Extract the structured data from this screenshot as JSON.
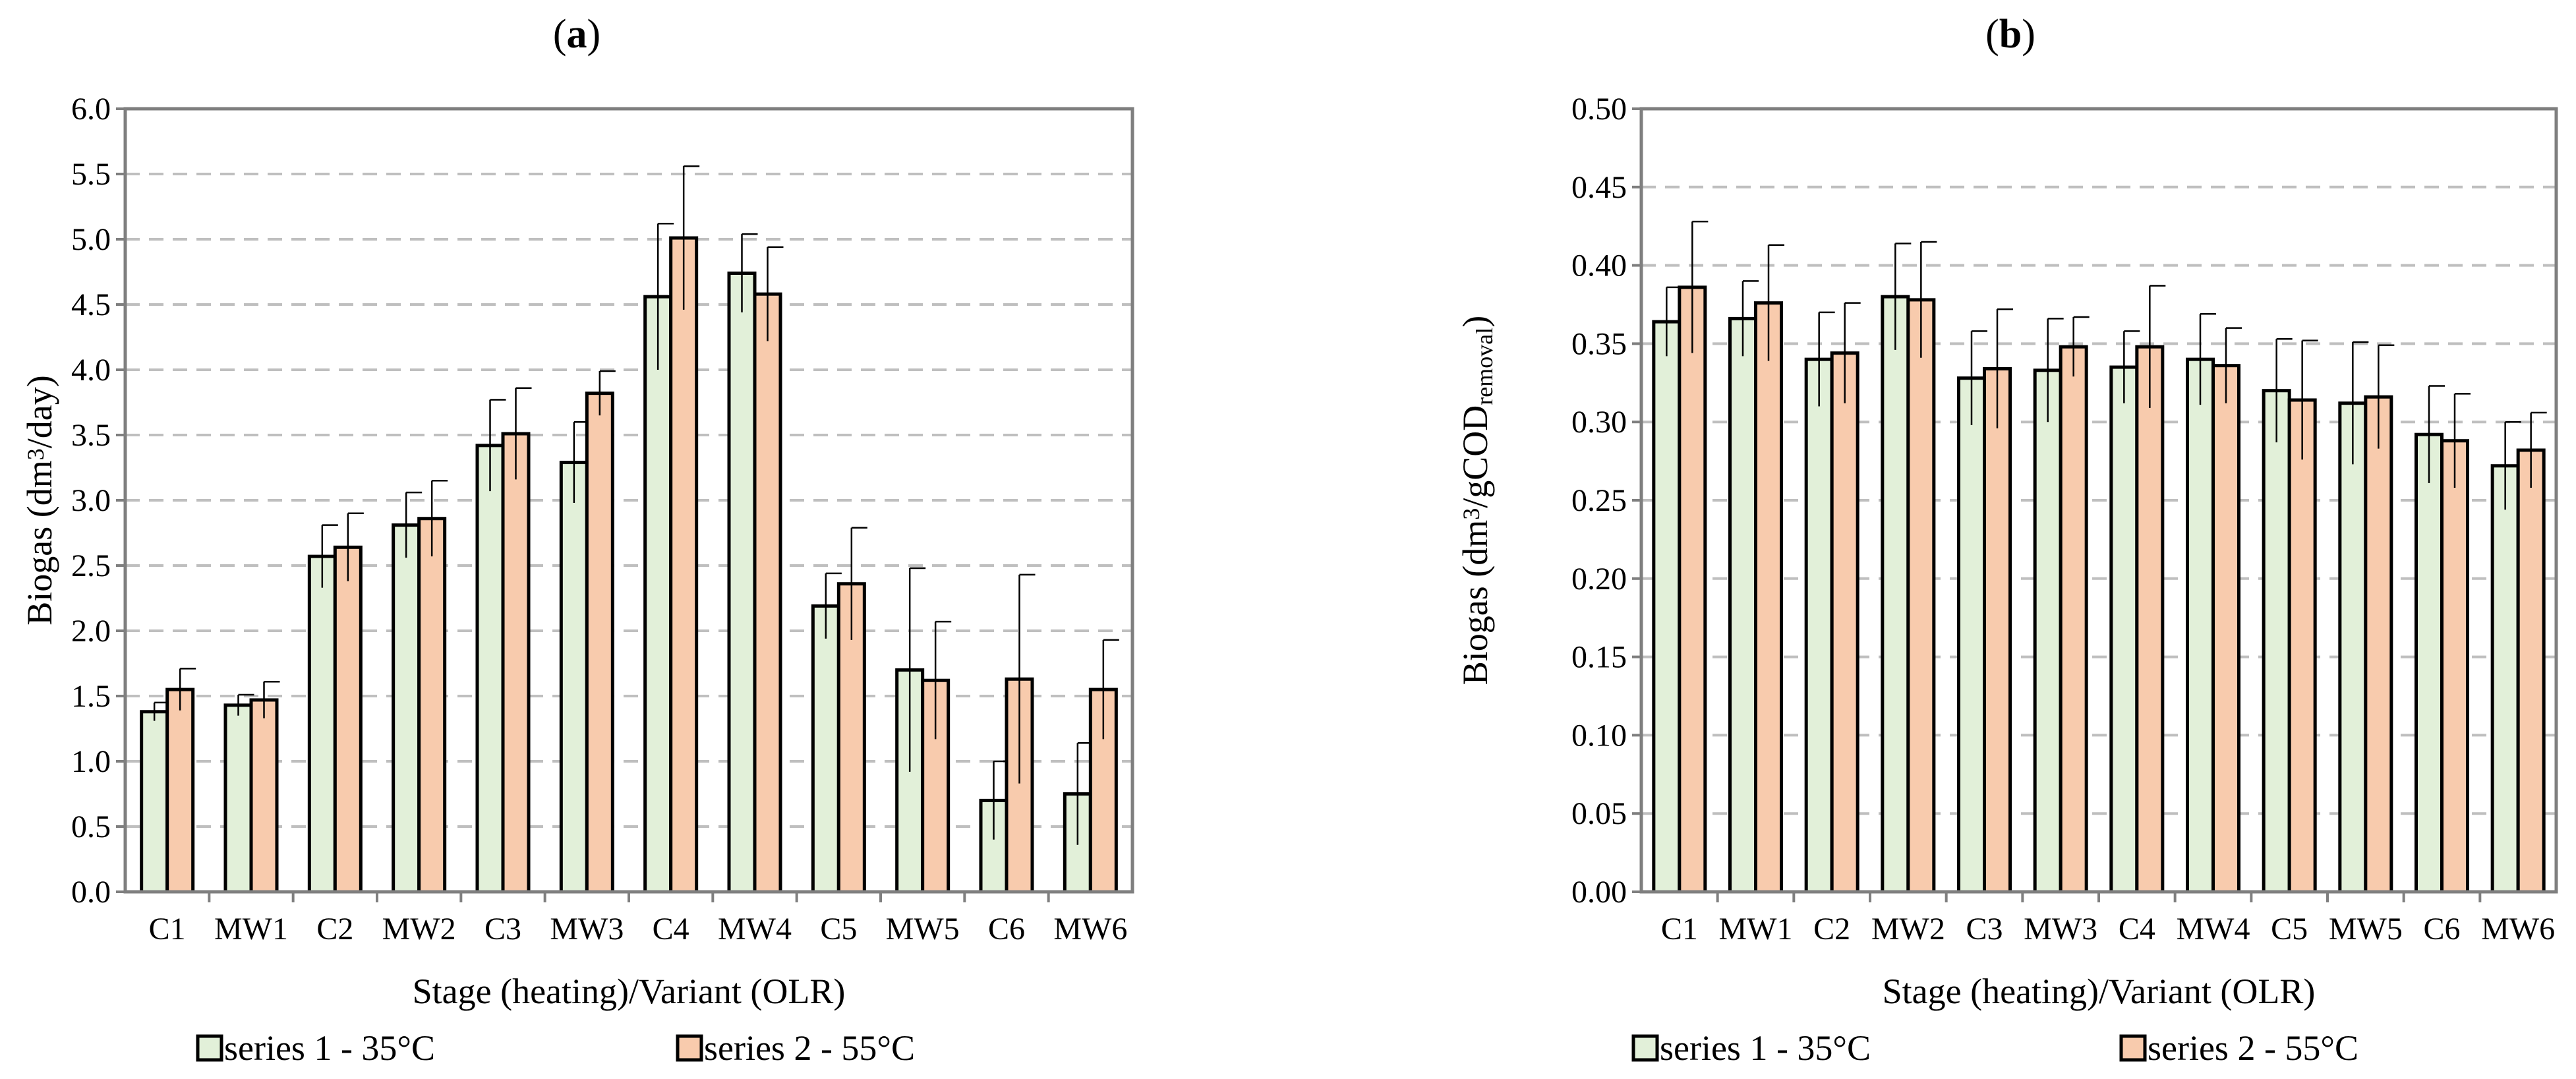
{
  "chart_data": [
    {
      "id": "a",
      "type": "bar",
      "title_prefix": "(",
      "title": "a",
      "title_suffix": ")",
      "xlabel": "Stage (heating)/Variant (OLR)",
      "ylabel": {
        "pre": "Biogas (dm",
        "sup": "3",
        "post": "/day)",
        "sub": "",
        "tail": ""
      },
      "ylim": [
        0,
        6.0
      ],
      "ytick_step": 0.5,
      "ytick_decimals": 1,
      "grid": true,
      "categories": [
        "C1",
        "MW1",
        "C2",
        "MW2",
        "C3",
        "MW3",
        "C4",
        "MW4",
        "C5",
        "MW5",
        "C6",
        "MW6"
      ],
      "series": [
        {
          "name": "series 1 - 35°C",
          "values": [
            1.38,
            1.43,
            2.57,
            2.81,
            3.42,
            3.29,
            4.56,
            4.74,
            2.19,
            1.7,
            0.7,
            0.75
          ],
          "errors": [
            0.07,
            0.08,
            0.24,
            0.25,
            0.35,
            0.31,
            0.56,
            0.3,
            0.25,
            0.78,
            0.3,
            0.39
          ]
        },
        {
          "name": "series 2 - 55°C",
          "values": [
            1.55,
            1.47,
            2.64,
            2.86,
            3.51,
            3.82,
            5.01,
            4.58,
            2.36,
            1.62,
            1.63,
            1.55
          ],
          "errors": [
            0.16,
            0.14,
            0.26,
            0.29,
            0.35,
            0.17,
            0.55,
            0.36,
            0.43,
            0.45,
            0.8,
            0.38
          ]
        }
      ]
    },
    {
      "id": "b",
      "type": "bar",
      "title_prefix": "(",
      "title": "b",
      "title_suffix": ")",
      "xlabel": "Stage (heating)/Variant (OLR)",
      "ylabel": {
        "pre": "Biogas (dm",
        "sup": "3",
        "post": "/gCOD",
        "sub": "removal",
        "tail": ")"
      },
      "ylim": [
        0,
        0.5
      ],
      "ytick_step": 0.05,
      "ytick_decimals": 2,
      "grid": true,
      "categories": [
        "C1",
        "MW1",
        "C2",
        "MW2",
        "C3",
        "MW3",
        "C4",
        "MW4",
        "C5",
        "MW5",
        "C6",
        "MW6"
      ],
      "series": [
        {
          "name": "series 1 - 35°C",
          "values": [
            0.364,
            0.366,
            0.34,
            0.38,
            0.328,
            0.333,
            0.335,
            0.34,
            0.32,
            0.312,
            0.292,
            0.272
          ],
          "errors": [
            0.022,
            0.024,
            0.03,
            0.034,
            0.03,
            0.033,
            0.023,
            0.029,
            0.033,
            0.039,
            0.031,
            0.028
          ]
        },
        {
          "name": "series 2 - 55°C",
          "values": [
            0.386,
            0.376,
            0.344,
            0.378,
            0.334,
            0.348,
            0.348,
            0.336,
            0.314,
            0.316,
            0.288,
            0.282
          ],
          "errors": [
            0.042,
            0.037,
            0.032,
            0.037,
            0.038,
            0.019,
            0.039,
            0.024,
            0.038,
            0.033,
            0.03,
            0.024
          ]
        }
      ]
    }
  ],
  "colors": {
    "series1": "#e2f0d9",
    "series2": "#f8cbad",
    "bar_stroke": "#000000",
    "axis": "#7f7f7f",
    "grid": "#bfbfbf"
  }
}
